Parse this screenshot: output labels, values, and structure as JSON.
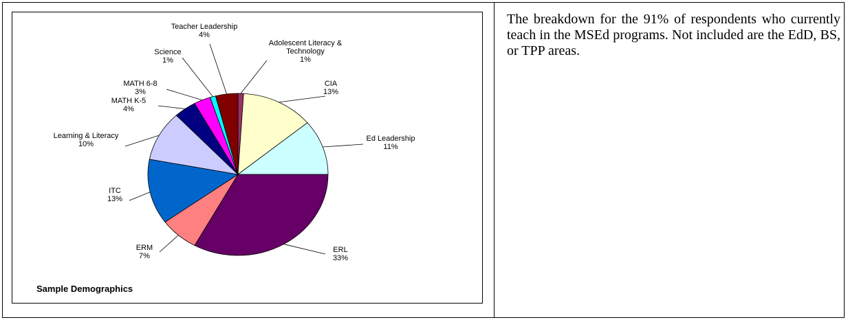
{
  "description_text": "The breakdown for the 91% of respondents who currently teach in the MSEd programs. Not included are the EdD, BS, or TPP areas.",
  "chart_data": {
    "type": "pie",
    "title": "Sample Demographics",
    "slices": [
      {
        "label": [
          "Adolescent Literacy &",
          "Technology",
          "1%"
        ],
        "name": "Adolescent Literacy & Technology",
        "value": 1,
        "color": "#993366"
      },
      {
        "label": [
          "CIA",
          "13%"
        ],
        "name": "CIA",
        "value": 13,
        "color": "#FFFFCC"
      },
      {
        "label": [
          "Ed Leadership",
          "11%"
        ],
        "name": "Ed Leadership",
        "value": 11,
        "color": "#CCFFFF"
      },
      {
        "label": [
          "ERL",
          "33%"
        ],
        "name": "ERL",
        "value": 33,
        "color": "#660066"
      },
      {
        "label": [
          "ERM",
          "7%"
        ],
        "name": "ERM",
        "value": 7,
        "color": "#FF8080"
      },
      {
        "label": [
          "ITC",
          "13%"
        ],
        "name": "ITC",
        "value": 13,
        "color": "#0066CC"
      },
      {
        "label": [
          "Learning & Literacy",
          "10%"
        ],
        "name": "Learning & Literacy",
        "value": 10,
        "color": "#CCCCFF"
      },
      {
        "label": [
          "MATH K-5",
          "4%"
        ],
        "name": "MATH K-5",
        "value": 4,
        "color": "#000080"
      },
      {
        "label": [
          "MATH 6-8",
          "3%"
        ],
        "name": "MATH 6-8",
        "value": 3,
        "color": "#FF00FF"
      },
      {
        "label": [
          "Science",
          "1%"
        ],
        "name": "Science",
        "value": 1,
        "color": "#00FFFF"
      },
      {
        "label": [
          "Teacher Leadership",
          "4%"
        ],
        "name": "Teacher Leadership",
        "value": 4,
        "color": "#800000"
      }
    ]
  }
}
